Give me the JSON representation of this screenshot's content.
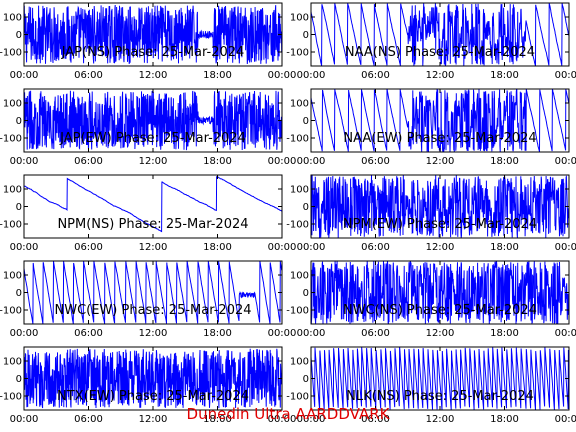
{
  "footer": "Dunedin Ultra AARDDVARK",
  "colors": {
    "trace": "#0000ff",
    "footer": "#e00000",
    "axes": "#000000"
  },
  "chart_data": [
    {
      "type": "line",
      "title": "JAP(NS) Phase: 25-Mar-2024",
      "pattern": "dense-band",
      "row": 0,
      "col": 0,
      "xticks": [
        "00:00",
        "06:00",
        "12:00",
        "18:00",
        "00:00"
      ],
      "xlim": [
        0,
        24
      ],
      "yticks": [
        100,
        0,
        -100
      ],
      "ylim": [
        -180,
        180
      ]
    },
    {
      "type": "line",
      "title": "NAA(NS) Phase: 25-Mar-2024",
      "pattern": "mixed",
      "row": 0,
      "col": 1,
      "xticks": [
        "00:00",
        "06:00",
        "12:00",
        "18:00",
        "00:00"
      ],
      "xlim": [
        0,
        24
      ],
      "yticks": [
        100,
        0,
        -100
      ],
      "ylim": [
        -180,
        180
      ]
    },
    {
      "type": "line",
      "title": "JAP(EW) Phase: 25-Mar-2024",
      "pattern": "dense-band",
      "row": 1,
      "col": 0,
      "xticks": [
        "00:00",
        "06:00",
        "12:00",
        "18:00",
        "00:00"
      ],
      "xlim": [
        0,
        24
      ],
      "yticks": [
        100,
        0,
        -100
      ],
      "ylim": [
        -180,
        180
      ]
    },
    {
      "type": "line",
      "title": "NAA(EW) Phase: 25-Mar-2024",
      "pattern": "mixed",
      "row": 1,
      "col": 1,
      "xticks": [
        "00:00",
        "06:00",
        "12:00",
        "18:00",
        "00:00"
      ],
      "xlim": [
        0,
        24
      ],
      "yticks": [
        100,
        0,
        -100
      ],
      "ylim": [
        -180,
        180
      ]
    },
    {
      "type": "line",
      "title": "NPM(NS) Phase: 25-Mar-2024",
      "pattern": "slow-drift",
      "row": 2,
      "col": 0,
      "xticks": [
        "00:00",
        "06:00",
        "12:00",
        "18:00",
        "00:00"
      ],
      "xlim": [
        0,
        24
      ],
      "yticks": [
        100,
        0,
        -100
      ],
      "ylim": [
        -180,
        180
      ]
    },
    {
      "type": "line",
      "title": "NPM(EW) Phase: 25-Mar-2024",
      "pattern": "dense-sawtooth",
      "row": 2,
      "col": 1,
      "xticks": [
        "00:00",
        "06:00",
        "12:00",
        "18:00",
        "00:00"
      ],
      "xlim": [
        0,
        24
      ],
      "yticks": [
        100,
        0,
        -100
      ],
      "ylim": [
        -180,
        180
      ]
    },
    {
      "type": "line",
      "title": "NWC(EW) Phase: 25-Mar-2024",
      "pattern": "sawtooth",
      "row": 3,
      "col": 0,
      "xticks": [
        "00:00",
        "06:00",
        "12:00",
        "18:00",
        "00:00"
      ],
      "xlim": [
        0,
        24
      ],
      "yticks": [
        100,
        0,
        -100
      ],
      "ylim": [
        -180,
        180
      ]
    },
    {
      "type": "line",
      "title": "NWC(NS) Phase: 25-Mar-2024",
      "pattern": "dense-sawtooth",
      "row": 3,
      "col": 1,
      "xticks": [
        "00:00",
        "06:00",
        "12:00",
        "18:00",
        "00:00"
      ],
      "xlim": [
        0,
        24
      ],
      "yticks": [
        100,
        0,
        -100
      ],
      "ylim": [
        -180,
        180
      ]
    },
    {
      "type": "line",
      "title": "NTX(EW) Phase: 25-Mar-2024",
      "pattern": "noise",
      "row": 4,
      "col": 0,
      "xticks": [
        "00:00",
        "06:00",
        "12:00",
        "18:00",
        "00:00"
      ],
      "xlim": [
        0,
        24
      ],
      "yticks": [
        100,
        0,
        -100
      ],
      "ylim": [
        -180,
        180
      ]
    },
    {
      "type": "line",
      "title": "NLK(NS) Phase: 25-Mar-2024",
      "pattern": "fast-sawtooth",
      "row": 4,
      "col": 1,
      "xticks": [
        "00:00",
        "06:00",
        "12:00",
        "18:00",
        "00:00"
      ],
      "xlim": [
        0,
        24
      ],
      "yticks": [
        100,
        0,
        -100
      ],
      "ylim": [
        -180,
        180
      ]
    }
  ]
}
